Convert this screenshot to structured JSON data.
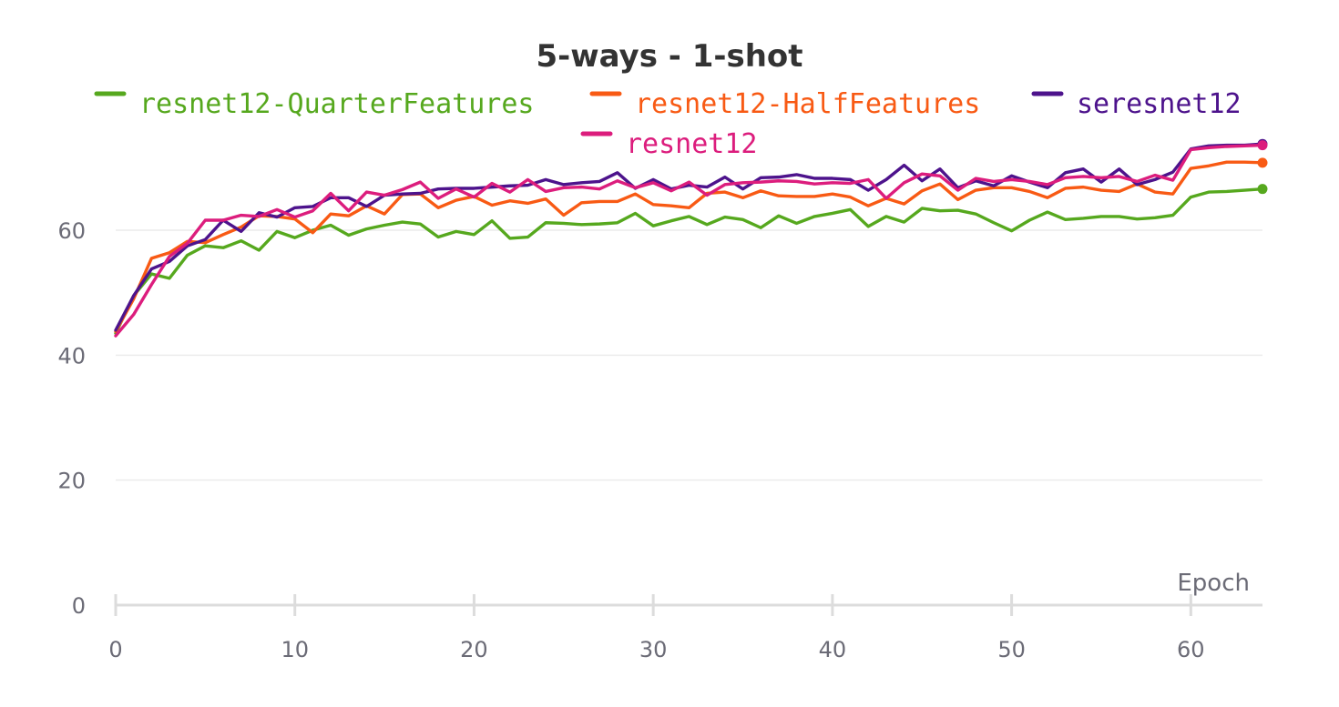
{
  "chart_data": {
    "type": "line",
    "title": "5-ways - 1-shot",
    "xlabel": "Epoch",
    "ylabel": "",
    "xlim": [
      0,
      64
    ],
    "ylim": [
      0,
      75
    ],
    "xticks": [
      "0",
      "10",
      "20",
      "30",
      "40",
      "50",
      "60"
    ],
    "yticks": [
      "0",
      "20",
      "40",
      "60"
    ],
    "grid": true,
    "legend_position": "top",
    "series": [
      {
        "name": "resnet12-QuarterFeatures",
        "color": "#56a81e",
        "y": [
          43.5,
          49.5,
          53,
          52.3,
          56,
          57.5,
          57.2,
          58.3,
          56.8,
          59.8,
          58.8,
          60,
          60.8,
          59.2,
          60.2,
          60.8,
          61.3,
          61,
          58.9,
          59.8,
          59.3,
          61.5,
          58.7,
          58.9,
          61.2,
          61.1,
          60.9,
          61,
          61.2,
          62.7,
          60.7,
          61.5,
          62.2,
          60.9,
          62.1,
          61.7,
          60.4,
          62.3,
          61.1,
          62.2,
          62.7,
          63.3,
          60.6,
          62.2,
          61.3,
          63.5,
          63.1,
          63.2,
          62.6,
          61.2,
          59.9,
          61.6,
          62.9,
          61.7,
          61.9,
          62.2,
          62.2,
          61.8,
          62,
          62.4,
          65.3,
          66.1,
          66.2,
          66.4,
          66.6
        ]
      },
      {
        "name": "resnet12-HalfFeatures",
        "color": "#f85a14",
        "y": [
          43.8,
          49,
          55.5,
          56.4,
          58.2,
          58,
          59.3,
          60.5,
          62.3,
          62.2,
          61.8,
          59.6,
          62.6,
          62.3,
          63.9,
          62.6,
          65.7,
          65.8,
          63.6,
          64.8,
          65.4,
          64,
          64.7,
          64.3,
          65,
          62.4,
          64.4,
          64.6,
          64.6,
          65.8,
          64.1,
          63.9,
          63.6,
          65.9,
          66.1,
          65.2,
          66.3,
          65.5,
          65.4,
          65.4,
          65.8,
          65.3,
          63.9,
          65.1,
          64.2,
          66.3,
          67.4,
          64.9,
          66.4,
          66.8,
          66.8,
          66.2,
          65.2,
          66.7,
          66.9,
          66.4,
          66.2,
          67.4,
          66.1,
          65.8,
          69.9,
          70.3,
          70.9,
          70.9,
          70.8
        ]
      },
      {
        "name": "seresnet12",
        "color": "#4d138c",
        "y": [
          44,
          49.5,
          53.8,
          55,
          57.5,
          58.5,
          61.6,
          59.8,
          62.8,
          62.1,
          63.6,
          63.8,
          65.2,
          65.2,
          63.8,
          65.6,
          65.8,
          65.9,
          66.6,
          66.7,
          66.7,
          66.9,
          67.1,
          67.2,
          68.1,
          67.3,
          67.6,
          67.8,
          69.2,
          66.7,
          68.1,
          66.6,
          67.2,
          66.9,
          68.5,
          66.6,
          68.4,
          68.5,
          68.9,
          68.3,
          68.3,
          68.1,
          66.4,
          68.1,
          70.4,
          67.9,
          69.8,
          66.8,
          67.9,
          67.1,
          68.7,
          67.7,
          66.8,
          69.2,
          69.8,
          67.7,
          69.8,
          67.3,
          68.1,
          69.3,
          73,
          73.5,
          73.6,
          73.6,
          73.8
        ]
      },
      {
        "name": "resnet12",
        "color": "#dc1d7d",
        "y": [
          43.1,
          46.5,
          51.3,
          55.8,
          57.9,
          61.6,
          61.6,
          62.4,
          62.2,
          63.3,
          62.1,
          63.1,
          65.9,
          63.1,
          66.1,
          65.6,
          66.5,
          67.7,
          65.1,
          66.6,
          65.3,
          67.5,
          66.1,
          68.1,
          66.2,
          66.8,
          66.9,
          66.6,
          67.9,
          66.8,
          67.6,
          66.3,
          67.7,
          65.6,
          67.3,
          67.6,
          67.7,
          67.9,
          67.8,
          67.4,
          67.6,
          67.5,
          68.1,
          65.1,
          67.6,
          69,
          68.7,
          66.4,
          68.3,
          67.8,
          68.1,
          67.8,
          67.3,
          68.4,
          68.6,
          68.4,
          68.6,
          67.8,
          68.8,
          68,
          72.9,
          73.2,
          73.4,
          73.5,
          73.6
        ]
      }
    ]
  }
}
